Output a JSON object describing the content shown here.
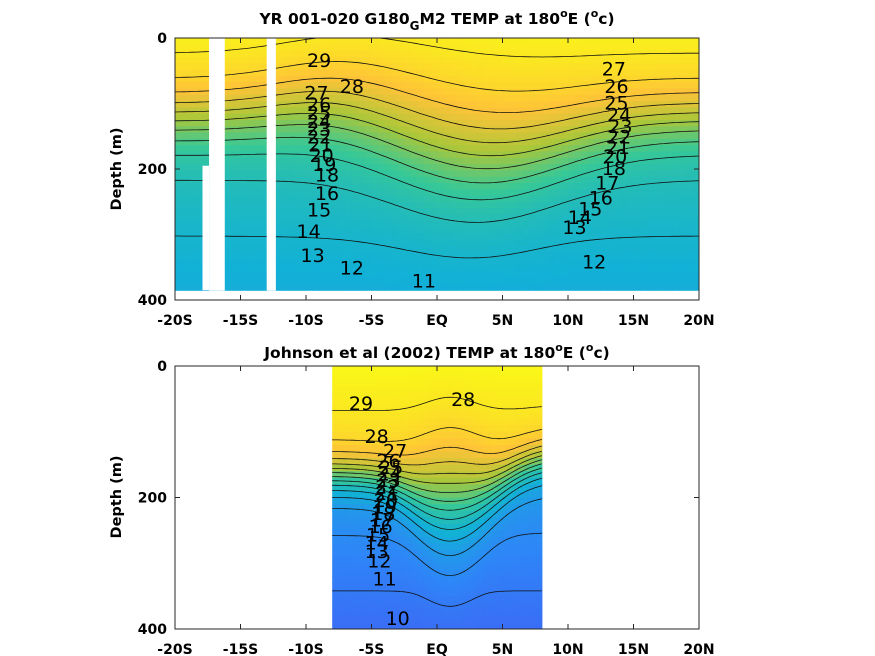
{
  "chart_data": [
    {
      "type": "contour",
      "title_main": "YR 001-020 G180",
      "title_sub": "G",
      "title_tail": "M2 TEMP at 180",
      "title_sup1": "o",
      "title_unit_a": "E (",
      "title_sup2": "o",
      "title_unit_b": "c)",
      "ylabel": "Depth (m)",
      "x_ticks": [
        "-20S",
        "-15S",
        "-10S",
        "-5S",
        "EQ",
        "5N",
        "10N",
        "15N",
        "20N"
      ],
      "x_tick_values": [
        -20,
        -15,
        -10,
        -5,
        0,
        5,
        10,
        15,
        20
      ],
      "y_ticks": [
        "0",
        "200",
        "400"
      ],
      "y_tick_values": [
        0,
        200,
        400
      ],
      "xlim": [
        -20,
        20
      ],
      "ylim": [
        0,
        400
      ],
      "y_reversed": true,
      "data_extent": {
        "x": [
          -20,
          20
        ],
        "depth": [
          0,
          385
        ]
      },
      "data_gaps_x": [
        [
          -17.4,
          -16.2
        ],
        [
          -13.0,
          -12.3
        ]
      ],
      "data_gap_partial": {
        "x": [
          -17.9,
          -17.4
        ],
        "from_depth": 195
      },
      "contour_levels": [
        11,
        12,
        13,
        14,
        15,
        16,
        17,
        18,
        19,
        20,
        21,
        22,
        23,
        24,
        25,
        26,
        27,
        28,
        29
      ],
      "color_range": [
        10,
        30
      ],
      "contour_labels": [
        {
          "text": "29",
          "x": -9.0,
          "depth": 35
        },
        {
          "text": "28",
          "x": -6.5,
          "depth": 75
        },
        {
          "text": "27",
          "x": -9.2,
          "depth": 85
        },
        {
          "text": "26",
          "x": -9.0,
          "depth": 102
        },
        {
          "text": "25",
          "x": -9.0,
          "depth": 115
        },
        {
          "text": "24",
          "x": -9.0,
          "depth": 128
        },
        {
          "text": "23",
          "x": -9.0,
          "depth": 140
        },
        {
          "text": "22",
          "x": -9.0,
          "depth": 152
        },
        {
          "text": "21",
          "x": -8.9,
          "depth": 164
        },
        {
          "text": "20",
          "x": -8.8,
          "depth": 180
        },
        {
          "text": "19",
          "x": -8.6,
          "depth": 194
        },
        {
          "text": "18",
          "x": -8.4,
          "depth": 210
        },
        {
          "text": "16",
          "x": -8.4,
          "depth": 238
        },
        {
          "text": "15",
          "x": -9.0,
          "depth": 263
        },
        {
          "text": "14",
          "x": -9.8,
          "depth": 296
        },
        {
          "text": "13",
          "x": -9.5,
          "depth": 333
        },
        {
          "text": "12",
          "x": -6.5,
          "depth": 352
        },
        {
          "text": "11",
          "x": -1.0,
          "depth": 372
        },
        {
          "text": "27",
          "x": 13.5,
          "depth": 48
        },
        {
          "text": "26",
          "x": 13.7,
          "depth": 75
        },
        {
          "text": "25",
          "x": 13.7,
          "depth": 100
        },
        {
          "text": "24",
          "x": 13.9,
          "depth": 118
        },
        {
          "text": "23",
          "x": 14.0,
          "depth": 136
        },
        {
          "text": "22",
          "x": 13.9,
          "depth": 152
        },
        {
          "text": "21",
          "x": 13.8,
          "depth": 168
        },
        {
          "text": "20",
          "x": 13.6,
          "depth": 182
        },
        {
          "text": "18",
          "x": 13.5,
          "depth": 200
        },
        {
          "text": "17",
          "x": 13.0,
          "depth": 222
        },
        {
          "text": "16",
          "x": 12.5,
          "depth": 245
        },
        {
          "text": "15",
          "x": 11.7,
          "depth": 262
        },
        {
          "text": "14",
          "x": 10.9,
          "depth": 275
        },
        {
          "text": "13",
          "x": 10.5,
          "depth": 290
        },
        {
          "text": "12",
          "x": 12.0,
          "depth": 343
        }
      ]
    },
    {
      "type": "contour",
      "title_main": "Johnson et al (2002) TEMP at 180",
      "title_sup1": "o",
      "title_unit_a": "E (",
      "title_sup2": "o",
      "title_unit_b": "c)",
      "ylabel": "Depth (m)",
      "x_ticks": [
        "-20S",
        "-15S",
        "-10S",
        "-5S",
        "EQ",
        "5N",
        "10N",
        "15N",
        "20N"
      ],
      "x_tick_values": [
        -20,
        -15,
        -10,
        -5,
        0,
        5,
        10,
        15,
        20
      ],
      "y_ticks": [
        "0",
        "200",
        "400"
      ],
      "y_tick_values": [
        0,
        200,
        400
      ],
      "xlim": [
        -20,
        20
      ],
      "ylim": [
        0,
        400
      ],
      "y_reversed": true,
      "data_extent": {
        "x": [
          -8,
          8
        ],
        "depth": [
          0,
          400
        ]
      },
      "contour_levels": [
        10,
        11,
        12,
        13,
        14,
        15,
        16,
        17,
        18,
        19,
        20,
        21,
        22,
        23,
        24,
        25,
        26,
        27,
        28,
        29
      ],
      "color_range": [
        10,
        30
      ],
      "contour_labels": [
        {
          "text": "29",
          "x": -5.8,
          "depth": 58
        },
        {
          "text": "28",
          "x": 2.0,
          "depth": 52
        },
        {
          "text": "28",
          "x": -4.6,
          "depth": 108
        },
        {
          "text": "27",
          "x": -3.2,
          "depth": 130
        },
        {
          "text": "26",
          "x": -3.7,
          "depth": 145
        },
        {
          "text": "25",
          "x": -3.5,
          "depth": 155
        },
        {
          "text": "24",
          "x": -3.6,
          "depth": 165
        },
        {
          "text": "23",
          "x": -3.7,
          "depth": 175
        },
        {
          "text": "22",
          "x": -3.8,
          "depth": 185
        },
        {
          "text": "21",
          "x": -3.8,
          "depth": 195
        },
        {
          "text": "20",
          "x": -3.9,
          "depth": 205
        },
        {
          "text": "19",
          "x": -4.0,
          "depth": 215
        },
        {
          "text": "18",
          "x": -4.1,
          "depth": 225
        },
        {
          "text": "17",
          "x": -4.2,
          "depth": 235
        },
        {
          "text": "16",
          "x": -4.3,
          "depth": 245
        },
        {
          "text": "15",
          "x": -4.5,
          "depth": 258
        },
        {
          "text": "14",
          "x": -4.6,
          "depth": 270
        },
        {
          "text": "13",
          "x": -4.6,
          "depth": 283
        },
        {
          "text": "12",
          "x": -4.4,
          "depth": 297
        },
        {
          "text": "11",
          "x": -4.0,
          "depth": 325
        },
        {
          "text": "10",
          "x": -3.0,
          "depth": 385
        }
      ]
    }
  ]
}
